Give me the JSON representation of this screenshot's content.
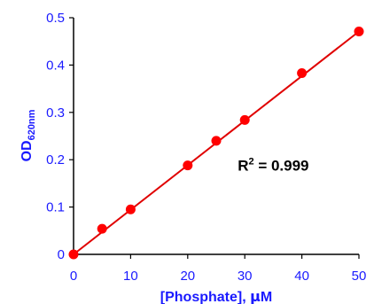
{
  "chart_data": {
    "type": "scatter",
    "xlabel_main": "[Phosphate], ",
    "xlabel_mu": "μ",
    "xlabel_unit": "M",
    "ylabel_main": "OD",
    "ylabel_sub": "620nm",
    "xlim": [
      0,
      50
    ],
    "ylim": [
      0,
      0.5
    ],
    "x_ticks": [
      "0",
      "10",
      "20",
      "30",
      "40",
      "50"
    ],
    "y_ticks": [
      "0",
      "0.1",
      "0.2",
      "0.3",
      "0.4",
      "0.5"
    ],
    "grid": false,
    "points": [
      {
        "x": 0,
        "y": 0.0
      },
      {
        "x": 5,
        "y": 0.054
      },
      {
        "x": 10,
        "y": 0.095
      },
      {
        "x": 20,
        "y": 0.188
      },
      {
        "x": 25,
        "y": 0.24
      },
      {
        "x": 30,
        "y": 0.284
      },
      {
        "x": 40,
        "y": 0.383
      },
      {
        "x": 50,
        "y": 0.471
      }
    ],
    "fit_line": {
      "x0": 0,
      "y0": 0.0,
      "x1": 50,
      "y1": 0.471
    },
    "annotation": {
      "prefix": "R",
      "sup": "2",
      "suffix": " = 0.999",
      "x": 30,
      "y": 0.19
    },
    "colors": {
      "marker": "#ff0000",
      "line": "#e00000",
      "axis": "#000000",
      "text": "#1a1aff"
    }
  }
}
